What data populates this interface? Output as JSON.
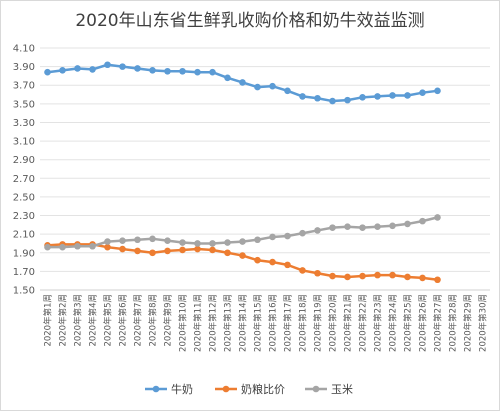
{
  "chart_data": {
    "type": "line",
    "title": "2020年山东省生鲜乳收购价格和奶牛效益监测",
    "xlabel": "",
    "ylabel": "",
    "ylim": [
      1.5,
      4.1
    ],
    "yticks": [
      "4.10",
      "3.90",
      "3.70",
      "3.50",
      "3.30",
      "3.10",
      "2.90",
      "2.70",
      "2.50",
      "2.30",
      "2.10",
      "1.90",
      "1.70",
      "1.50"
    ],
    "categories": [
      "2020年第1周",
      "2020年第2周",
      "2020年第3周",
      "2020年第4周",
      "2020年第5周",
      "2020年第6周",
      "2020年第7周",
      "2020年第8周",
      "2020年第9周",
      "2020年第10周",
      "2020年第11周",
      "2020年第12周",
      "2020年第13周",
      "2020年第14周",
      "2020年第15周",
      "2020年第16周",
      "2020年第17周",
      "2020年第18周",
      "2020年第19周",
      "2020年第20周",
      "2020年第21周",
      "2020年第22周",
      "2020年第23周",
      "2020年第24周",
      "2020年第25周",
      "2020年第26周",
      "2020年第27周",
      "2020年第28周",
      "2020年第29周",
      "2020年第30周"
    ],
    "grid": true,
    "legend_position": "bottom",
    "series": [
      {
        "name": "牛奶",
        "color": "#5b9bd5",
        "values": [
          3.84,
          3.86,
          3.88,
          3.87,
          3.92,
          3.9,
          3.88,
          3.86,
          3.85,
          3.85,
          3.84,
          3.84,
          3.78,
          3.73,
          3.68,
          3.69,
          3.64,
          3.58,
          3.56,
          3.53,
          3.54,
          3.57,
          3.58,
          3.59,
          3.59,
          3.62,
          3.64,
          null,
          null,
          null
        ]
      },
      {
        "name": "奶粮比价",
        "color": "#ed7d31",
        "values": [
          1.98,
          1.99,
          1.99,
          1.99,
          1.96,
          1.94,
          1.92,
          1.9,
          1.92,
          1.93,
          1.94,
          1.93,
          1.9,
          1.87,
          1.82,
          1.8,
          1.77,
          1.71,
          1.68,
          1.65,
          1.64,
          1.65,
          1.66,
          1.66,
          1.64,
          1.63,
          1.61,
          null,
          null,
          null
        ]
      },
      {
        "name": "玉米",
        "color": "#a5a5a5",
        "values": [
          1.96,
          1.96,
          1.97,
          1.97,
          2.02,
          2.03,
          2.04,
          2.05,
          2.03,
          2.01,
          2.0,
          2.0,
          2.01,
          2.02,
          2.04,
          2.07,
          2.08,
          2.11,
          2.14,
          2.17,
          2.18,
          2.17,
          2.18,
          2.19,
          2.21,
          2.24,
          2.28,
          null,
          null,
          null
        ]
      }
    ]
  }
}
